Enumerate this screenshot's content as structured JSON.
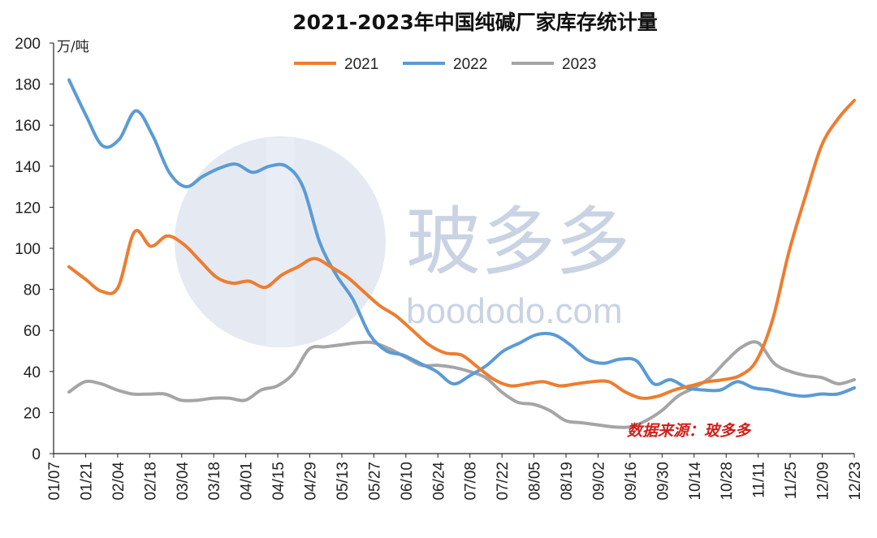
{
  "chart_data": {
    "type": "line",
    "title": "2021-2023年中国纯碱厂家库存统计量",
    "ylabel": "万/吨",
    "ylim": [
      0,
      200
    ],
    "yticks": [
      "0",
      "20",
      "40",
      "60",
      "80",
      "100",
      "120",
      "140",
      "160",
      "180",
      "200"
    ],
    "xtick_labels": [
      "01/07",
      "01/21",
      "02/04",
      "02/18",
      "03/04",
      "03/18",
      "04/01",
      "04/15",
      "04/29",
      "05/13",
      "05/27",
      "06/10",
      "06/24",
      "07/08",
      "07/22",
      "08/05",
      "08/19",
      "09/02",
      "09/16",
      "09/30",
      "10/14",
      "10/28",
      "11/11",
      "11/25",
      "12/09",
      "12/23"
    ],
    "legend_position": "top",
    "grid": false,
    "series": [
      {
        "name": "2021",
        "color": "#ed7d31",
        "values": [
          91,
          85,
          79,
          81,
          108,
          101,
          106,
          102,
          94,
          86,
          83,
          84,
          81,
          87,
          91,
          95,
          91,
          86,
          79,
          72,
          67,
          60,
          53,
          49,
          48,
          42,
          36,
          33,
          34,
          35,
          33,
          34,
          35,
          35,
          30,
          27,
          28,
          31,
          33,
          35,
          36,
          38,
          45,
          65,
          98,
          125,
          150,
          163,
          172
        ]
      },
      {
        "name": "2022",
        "color": "#5b9bd5",
        "values": [
          182,
          165,
          150,
          153,
          167,
          155,
          137,
          130,
          135,
          139,
          141,
          137,
          140,
          140,
          130,
          103,
          87,
          75,
          58,
          50,
          48,
          44,
          40,
          34,
          38,
          43,
          50,
          54,
          58,
          58,
          53,
          46,
          44,
          46,
          45,
          34,
          36,
          32,
          31,
          31,
          35,
          32,
          31,
          29,
          28,
          29,
          29,
          32
        ]
      },
      {
        "name": "2023",
        "color": "#a5a5a5",
        "values": [
          30,
          35,
          34,
          31,
          29,
          29,
          29,
          26,
          26,
          27,
          27,
          26,
          31,
          33,
          39,
          51,
          52,
          53,
          54,
          54,
          51,
          47,
          43,
          43,
          42,
          40,
          37,
          30,
          25,
          24,
          21,
          16,
          15,
          14,
          13,
          13,
          16,
          21,
          28,
          32,
          37,
          45,
          52,
          54,
          44,
          40,
          38,
          37,
          34,
          36
        ]
      }
    ],
    "source_note": "数据来源：玻多多",
    "watermark_cn": "玻多多",
    "watermark_en": "boododo.com"
  }
}
